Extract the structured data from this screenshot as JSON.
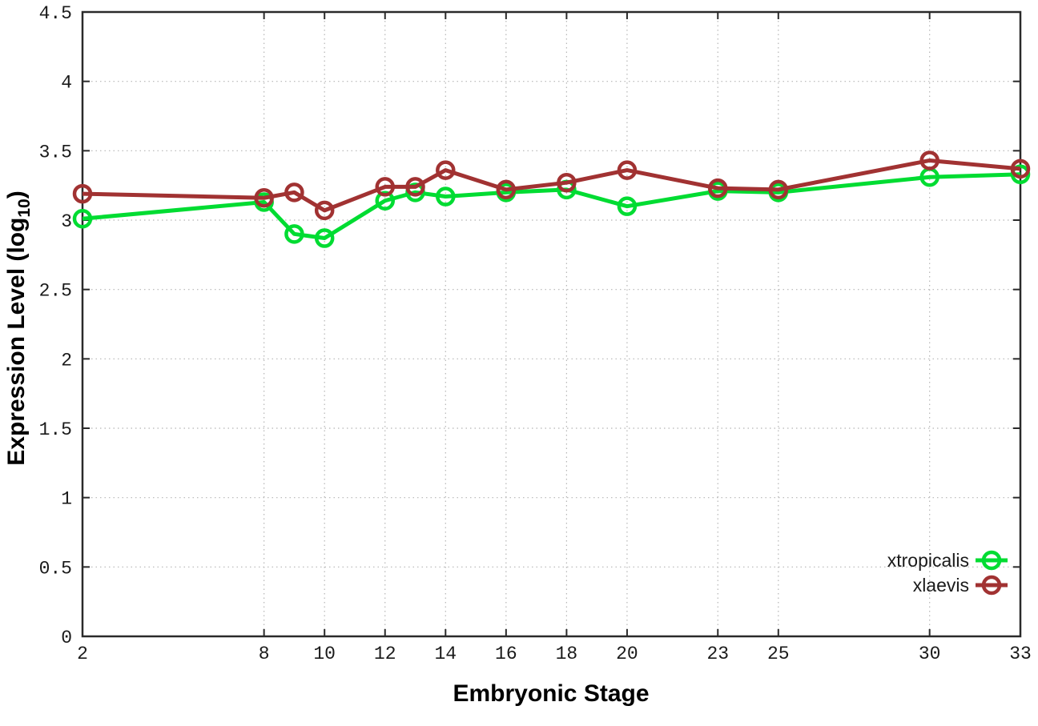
{
  "labels": {
    "xlabel": "Embryonic Stage",
    "ylabel_prefix": "Expression Level (log",
    "ylabel_sub": "10",
    "ylabel_suffix": ")"
  },
  "chart_data": {
    "type": "line",
    "title": "",
    "xlabel": "Embryonic Stage",
    "ylabel": "Expression Level (log10)",
    "xlim": [
      2,
      33
    ],
    "ylim": [
      0,
      4.5
    ],
    "xticks": [
      2,
      8,
      10,
      12,
      14,
      16,
      18,
      20,
      23,
      25,
      30,
      33
    ],
    "yticks": [
      0,
      0.5,
      1,
      1.5,
      2,
      2.5,
      3,
      3.5,
      4,
      4.5
    ],
    "ytick_labels": [
      "0",
      "0.5",
      "1",
      "1.5",
      "2",
      "2.5",
      "3",
      "3.5",
      "4",
      "4.5"
    ],
    "grid": true,
    "legend_position": "bottom-right",
    "x": [
      2,
      8,
      9,
      10,
      12,
      13,
      14,
      16,
      18,
      20,
      23,
      25,
      30,
      33
    ],
    "series": [
      {
        "name": "xtropicalis",
        "color": "#00dc32",
        "marker": "open-circle",
        "values": [
          3.01,
          3.13,
          2.9,
          2.87,
          3.14,
          3.2,
          3.17,
          3.2,
          3.22,
          3.1,
          3.21,
          3.2,
          3.31,
          3.33
        ]
      },
      {
        "name": "xlaevis",
        "color": "#a13232",
        "marker": "open-circle",
        "values": [
          3.19,
          3.16,
          3.2,
          3.07,
          3.24,
          3.24,
          3.36,
          3.22,
          3.27,
          3.36,
          3.23,
          3.22,
          3.43,
          3.37
        ]
      }
    ],
    "style": {
      "grid_color": "#b5b5b5",
      "axis_color": "#2a2a2a",
      "background": "#ffffff"
    }
  }
}
